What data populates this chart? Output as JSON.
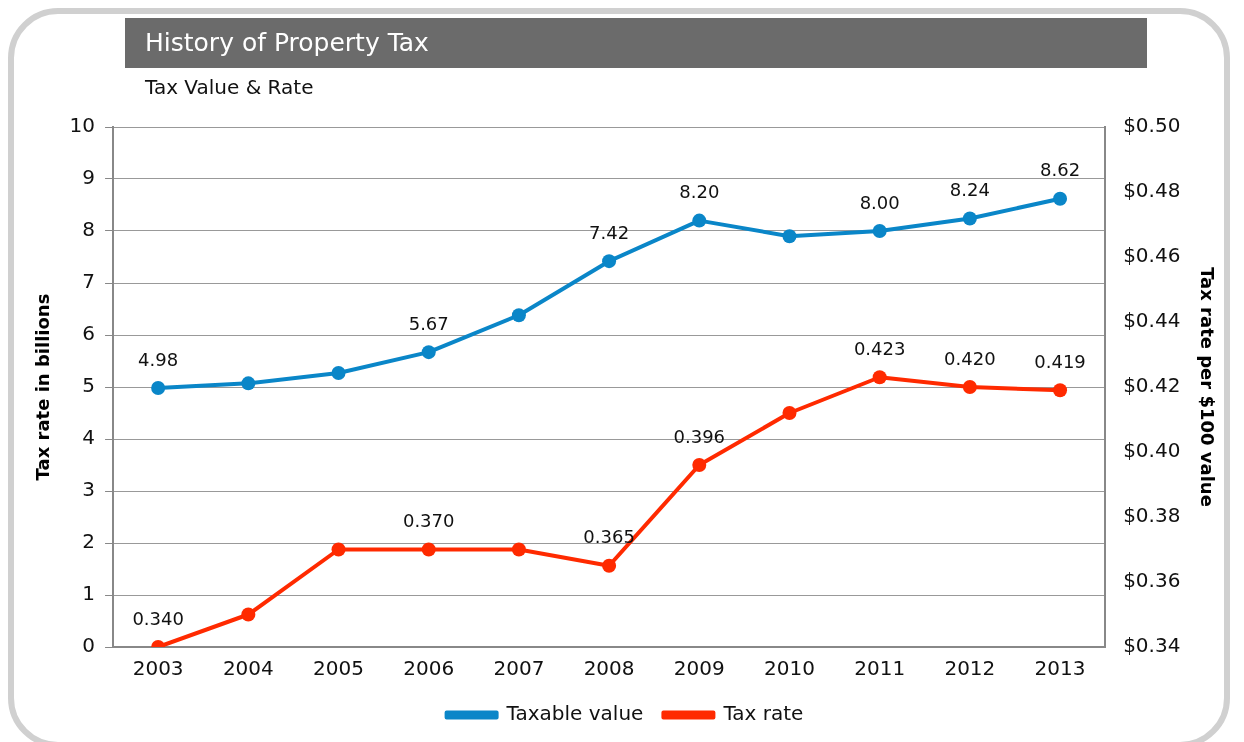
{
  "chart_data": {
    "type": "line",
    "title": "History of Property Tax",
    "subtitle": "Tax Value & Rate",
    "ylabel": "Tax rate in billions",
    "y2label": "Tax rate per $100 value",
    "categories": [
      "2003",
      "2004",
      "2005",
      "2006",
      "2007",
      "2008",
      "2009",
      "2010",
      "2011",
      "2012",
      "2013"
    ],
    "series": [
      {
        "name": "Taxable value",
        "color": "#0a86c8",
        "values": [
          4.98,
          5.07,
          5.27,
          5.67,
          6.38,
          7.42,
          8.2,
          7.9,
          8.0,
          8.24,
          8.62
        ],
        "value_labels": [
          "4.98",
          null,
          null,
          "5.67",
          null,
          "7.42",
          "8.20",
          null,
          "8.00",
          "8.24",
          "8.62"
        ]
      },
      {
        "name": "Tax rate",
        "color": "#ff2a00",
        "axis": "y2",
        "values": [
          0.34,
          0.35,
          0.37,
          0.37,
          0.37,
          0.365,
          0.396,
          0.412,
          0.423,
          0.42,
          0.419
        ],
        "value_labels": [
          "0.340",
          null,
          null,
          "0.370",
          null,
          "0.365",
          "0.396",
          null,
          "0.423",
          "0.420",
          "0.419"
        ]
      }
    ],
    "ylim": [
      0,
      10
    ],
    "yticks": [
      0,
      1,
      2,
      3,
      4,
      5,
      6,
      7,
      8,
      9,
      10
    ],
    "y2lim": [
      0.34,
      0.5
    ],
    "y2ticks": [
      {
        "value": 0.34,
        "label": "$0.34"
      },
      {
        "value": 0.36,
        "label": "$0.36"
      },
      {
        "value": 0.38,
        "label": "$0.38"
      },
      {
        "value": 0.4,
        "label": "$0.40"
      },
      {
        "value": 0.42,
        "label": "$0.42"
      },
      {
        "value": 0.44,
        "label": "$0.44"
      },
      {
        "value": 0.46,
        "label": "$0.46"
      },
      {
        "value": 0.48,
        "label": "$0.48"
      },
      {
        "value": 0.5,
        "label": "$0.50"
      }
    ],
    "grid": "y",
    "legend": "bottom",
    "marker": "circle",
    "line_style": "solid"
  }
}
